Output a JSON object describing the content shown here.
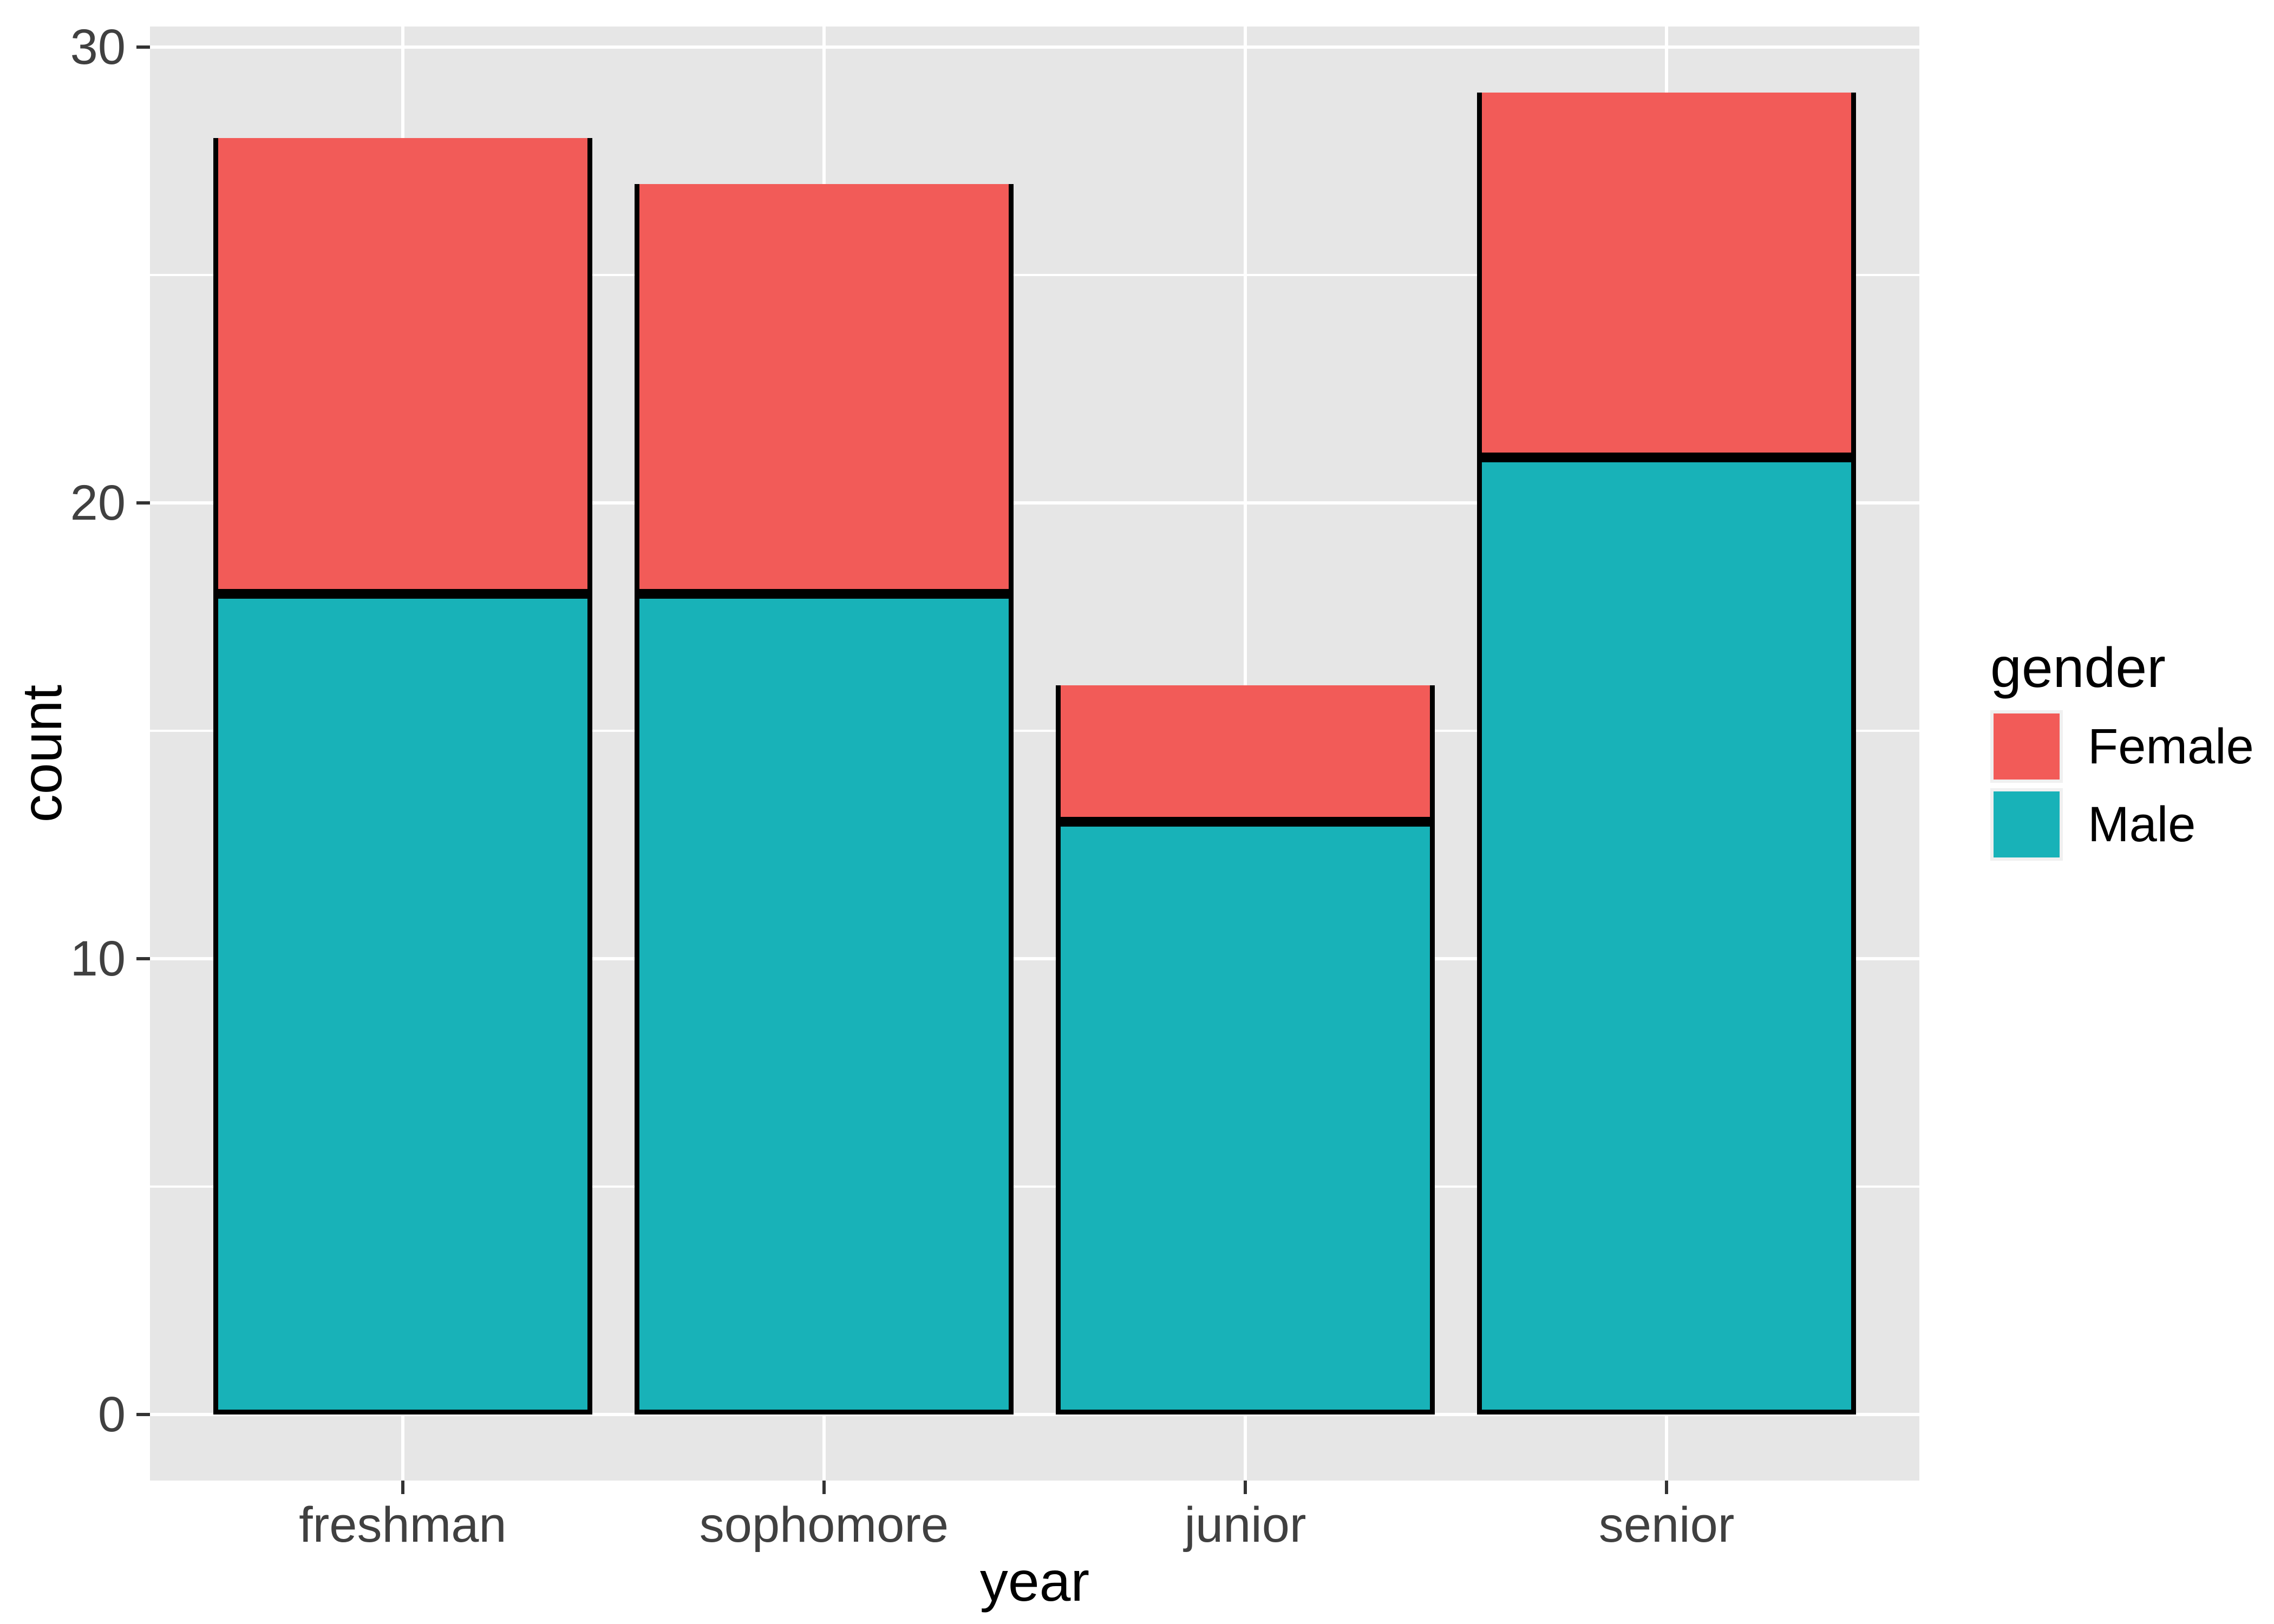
{
  "chart_data": {
    "type": "bar",
    "stacked": true,
    "title": "",
    "xlabel": "year",
    "ylabel": "count",
    "categories": [
      "freshman",
      "sophomore",
      "junior",
      "senior"
    ],
    "series": [
      {
        "name": "Male",
        "color": "#18B2B8",
        "values": [
          18,
          18,
          13,
          21
        ]
      },
      {
        "name": "Female",
        "color": "#F25B58",
        "values": [
          10,
          9,
          3,
          8
        ]
      }
    ],
    "totals": [
      28,
      27,
      16,
      29
    ],
    "ylim": [
      0,
      30
    ],
    "yticks": [
      0,
      10,
      20,
      30
    ],
    "yticks_minor": [
      5,
      15,
      25
    ],
    "grid": true,
    "legend_title": "gender",
    "legend_position": "right",
    "legend_order": [
      "Female",
      "Male"
    ]
  },
  "style": {
    "panel_bg": "#E6E6E6",
    "grid_color": "#FFFFFF",
    "bar_border_color": "#000000",
    "axis_tick_color": "#333333",
    "tick_label_color": "#404040",
    "title_color": "#000000",
    "legend_key_bg": "#F0F0F0",
    "background": "#FFFFFF"
  }
}
